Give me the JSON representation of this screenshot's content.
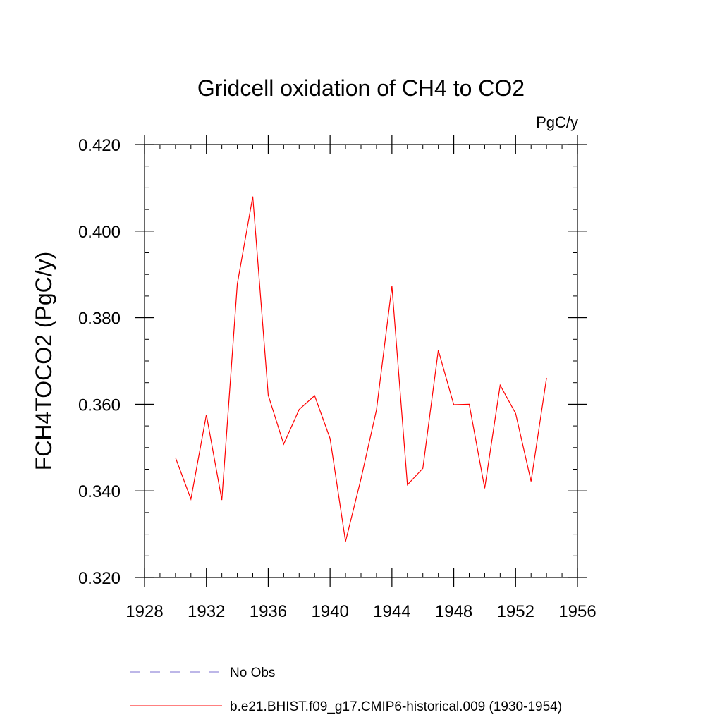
{
  "chart_data": {
    "type": "line",
    "title": "Gridcell oxidation of CH4 to CO2",
    "units_label": "PgC/y",
    "xlabel": "",
    "ylabel": "FCH4TOCO2  (PgC/y)",
    "xlim": [
      1928,
      1956
    ],
    "ylim": [
      0.32,
      0.42
    ],
    "xticks": [
      1928,
      1932,
      1936,
      1940,
      1944,
      1948,
      1952,
      1956
    ],
    "xtick_labels": [
      "1928",
      "1932",
      "1936",
      "1940",
      "1944",
      "1948",
      "1952",
      "1956"
    ],
    "yticks": [
      0.32,
      0.34,
      0.36,
      0.38,
      0.4,
      0.42
    ],
    "ytick_labels": [
      "0.320",
      "0.340",
      "0.360",
      "0.380",
      "0.400",
      "0.420"
    ],
    "grid": false,
    "legend_position": "bottom",
    "series": [
      {
        "name": "No Obs",
        "color": "#7b6fd0",
        "style": "dashed",
        "x": [],
        "values": []
      },
      {
        "name": "b.e21.BHIST.f09_g17.CMIP6-historical.009 (1930-1954)",
        "color": "#ff0000",
        "style": "solid",
        "x": [
          1930,
          1931,
          1932,
          1933,
          1934,
          1935,
          1936,
          1937,
          1938,
          1939,
          1940,
          1941,
          1942,
          1943,
          1944,
          1945,
          1946,
          1947,
          1948,
          1949,
          1950,
          1951,
          1952,
          1953,
          1954
        ],
        "values": [
          0.3477,
          0.3381,
          0.3576,
          0.3379,
          0.3878,
          0.408,
          0.3621,
          0.3508,
          0.3588,
          0.362,
          0.3521,
          0.3283,
          0.3428,
          0.3587,
          0.3873,
          0.3414,
          0.3452,
          0.3725,
          0.3599,
          0.36,
          0.3406,
          0.3644,
          0.3579,
          0.3422,
          0.3661
        ]
      }
    ]
  }
}
